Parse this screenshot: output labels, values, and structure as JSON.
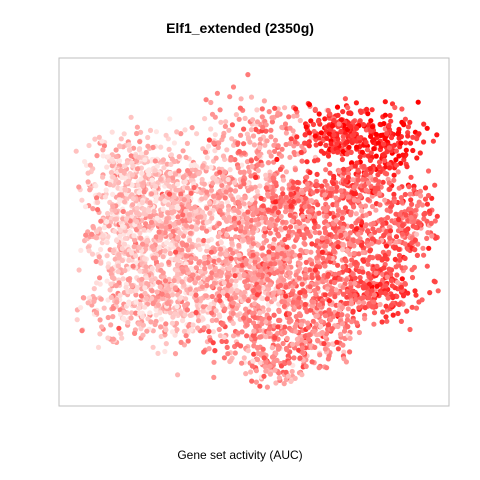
{
  "chart_data": {
    "type": "scatter",
    "title": "Elf1_extended (2350g)",
    "xlabel": "Gene set activity (AUC)",
    "ylabel": "",
    "grid": false,
    "legend": "none",
    "color_scale": {
      "low": "#ffe6e4",
      "high": "#ff0000",
      "meaning": "Gene set activity (AUC)"
    },
    "point_density": 5200,
    "regions": [
      {
        "cx": 0.3,
        "cy": 0.36,
        "sx": 0.12,
        "sy": 0.08,
        "n": 420,
        "level": 0.18
      },
      {
        "cx": 0.16,
        "cy": 0.32,
        "sx": 0.06,
        "sy": 0.06,
        "n": 200,
        "level": 0.12
      },
      {
        "cx": 0.14,
        "cy": 0.52,
        "sx": 0.06,
        "sy": 0.08,
        "n": 260,
        "level": 0.14
      },
      {
        "cx": 0.28,
        "cy": 0.58,
        "sx": 0.1,
        "sy": 0.08,
        "n": 380,
        "level": 0.18
      },
      {
        "cx": 0.24,
        "cy": 0.72,
        "sx": 0.12,
        "sy": 0.06,
        "n": 380,
        "level": 0.2
      },
      {
        "cx": 0.5,
        "cy": 0.22,
        "sx": 0.08,
        "sy": 0.07,
        "n": 180,
        "level": 0.35
      },
      {
        "cx": 0.52,
        "cy": 0.44,
        "sx": 0.07,
        "sy": 0.07,
        "n": 240,
        "level": 0.38
      },
      {
        "cx": 0.46,
        "cy": 0.62,
        "sx": 0.09,
        "sy": 0.06,
        "n": 300,
        "level": 0.3
      },
      {
        "cx": 0.58,
        "cy": 0.64,
        "sx": 0.07,
        "sy": 0.06,
        "n": 220,
        "level": 0.42
      },
      {
        "cx": 0.5,
        "cy": 0.8,
        "sx": 0.08,
        "sy": 0.05,
        "n": 180,
        "level": 0.4
      },
      {
        "cx": 0.52,
        "cy": 0.91,
        "sx": 0.05,
        "sy": 0.03,
        "n": 90,
        "level": 0.35
      },
      {
        "cx": 0.72,
        "cy": 0.19,
        "sx": 0.05,
        "sy": 0.04,
        "n": 180,
        "level": 0.78
      },
      {
        "cx": 0.84,
        "cy": 0.22,
        "sx": 0.05,
        "sy": 0.05,
        "n": 170,
        "level": 0.85
      },
      {
        "cx": 0.76,
        "cy": 0.35,
        "sx": 0.06,
        "sy": 0.04,
        "n": 180,
        "level": 0.6
      },
      {
        "cx": 0.62,
        "cy": 0.4,
        "sx": 0.05,
        "sy": 0.04,
        "n": 120,
        "level": 0.55
      },
      {
        "cx": 0.84,
        "cy": 0.5,
        "sx": 0.06,
        "sy": 0.06,
        "n": 180,
        "level": 0.55
      },
      {
        "cx": 0.7,
        "cy": 0.52,
        "sx": 0.06,
        "sy": 0.05,
        "n": 160,
        "level": 0.5
      },
      {
        "cx": 0.82,
        "cy": 0.66,
        "sx": 0.06,
        "sy": 0.05,
        "n": 220,
        "level": 0.68
      },
      {
        "cx": 0.68,
        "cy": 0.72,
        "sx": 0.06,
        "sy": 0.05,
        "n": 160,
        "level": 0.5
      },
      {
        "cx": 0.66,
        "cy": 0.84,
        "sx": 0.05,
        "sy": 0.04,
        "n": 100,
        "level": 0.45
      },
      {
        "cx": 0.92,
        "cy": 0.45,
        "sx": 0.03,
        "sy": 0.05,
        "n": 90,
        "level": 0.6
      },
      {
        "cx": 0.26,
        "cy": 0.44,
        "sx": 0.08,
        "sy": 0.04,
        "n": 160,
        "level": 0.25
      }
    ]
  }
}
